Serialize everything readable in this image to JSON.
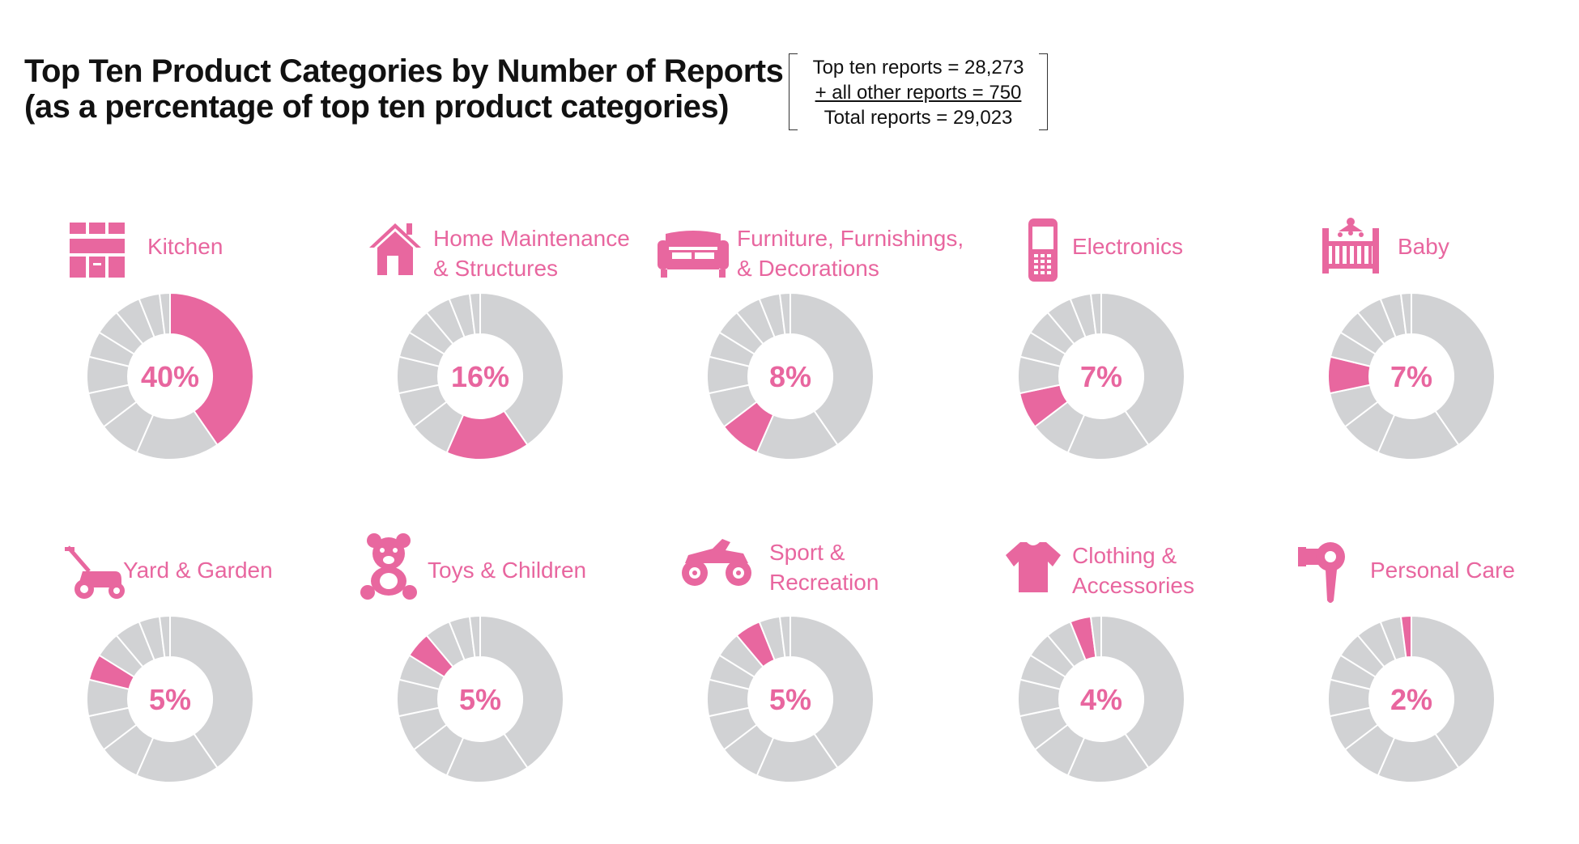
{
  "title_line1": "Top Ten Product Categories by Number of Reports",
  "title_line2": "(as a percentage of top ten product categories)",
  "totals": {
    "line1": "Top ten reports = 28,273",
    "line2": "+ all other reports = 750",
    "line3": "Total reports = 29,023"
  },
  "colors": {
    "highlight": "#e8679f",
    "rest": "#d1d2d4",
    "separator": "#ffffff",
    "text": "#e8669f"
  },
  "chart_data": {
    "type": "pie",
    "variant": "donut-small-multiples",
    "categories": [
      "Kitchen",
      "Home Maintenance & Structures",
      "Furniture, Furnishings, & Decorations",
      "Electronics",
      "Baby",
      "Yard & Garden",
      "Toys & Children",
      "Sport & Recreation",
      "Clothing & Accessories",
      "Personal Care"
    ],
    "values": [
      40,
      16,
      8,
      7,
      7,
      5,
      5,
      5,
      4,
      2
    ],
    "value_labels": [
      "40%",
      "16%",
      "8%",
      "7%",
      "7%",
      "5%",
      "5%",
      "5%",
      "4%",
      "2%"
    ],
    "unit": "%"
  },
  "panels": [
    {
      "label_lines": [
        "Kitchen"
      ],
      "icon": "kitchen-cabinet-icon"
    },
    {
      "label_lines": [
        "Home Maintenance",
        "& Structures"
      ],
      "icon": "house-icon"
    },
    {
      "label_lines": [
        "Furniture, Furnishings,",
        "& Decorations"
      ],
      "icon": "sofa-icon"
    },
    {
      "label_lines": [
        "Electronics"
      ],
      "icon": "cell-phone-icon"
    },
    {
      "label_lines": [
        "Baby"
      ],
      "icon": "crib-icon"
    },
    {
      "label_lines": [
        "Yard & Garden"
      ],
      "icon": "lawn-mower-icon"
    },
    {
      "label_lines": [
        "Toys & Children"
      ],
      "icon": "teddy-bear-icon"
    },
    {
      "label_lines": [
        "Sport &",
        "Recreation"
      ],
      "icon": "atv-icon"
    },
    {
      "label_lines": [
        "Clothing &",
        "Accessories"
      ],
      "icon": "t-shirt-icon"
    },
    {
      "label_lines": [
        "Personal Care"
      ],
      "icon": "hair-dryer-icon"
    }
  ]
}
